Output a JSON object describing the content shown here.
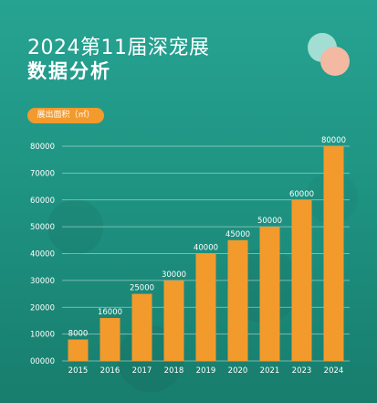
{
  "header": {
    "title": "2024第11届深宠展",
    "subtitle": "数据分析"
  },
  "unit_label": "展出面积（㎡）",
  "colors": {
    "background": "#1f9483",
    "bar": "#f39a2c",
    "circle_teal": "#a3ded4",
    "circle_pink": "#f3b9a3"
  },
  "chart_data": {
    "type": "bar",
    "title": "",
    "xlabel": "",
    "ylabel": "展出面积（㎡）",
    "categories": [
      "2015",
      "2016",
      "2017",
      "2018",
      "2019",
      "2020",
      "2021",
      "2023",
      "2024"
    ],
    "values": [
      8000,
      16000,
      25000,
      30000,
      40000,
      45000,
      50000,
      60000,
      80000
    ],
    "data_labels": [
      "8000",
      "16000",
      "25000",
      "30000",
      "40000",
      "45000",
      "50000",
      "60000",
      "80000"
    ],
    "ylim": [
      0,
      80000
    ],
    "y_ticks": [
      "00000",
      "10000",
      "20000",
      "30000",
      "40000",
      "50000",
      "60000",
      "70000",
      "80000"
    ],
    "grid": true,
    "legend": "none"
  }
}
